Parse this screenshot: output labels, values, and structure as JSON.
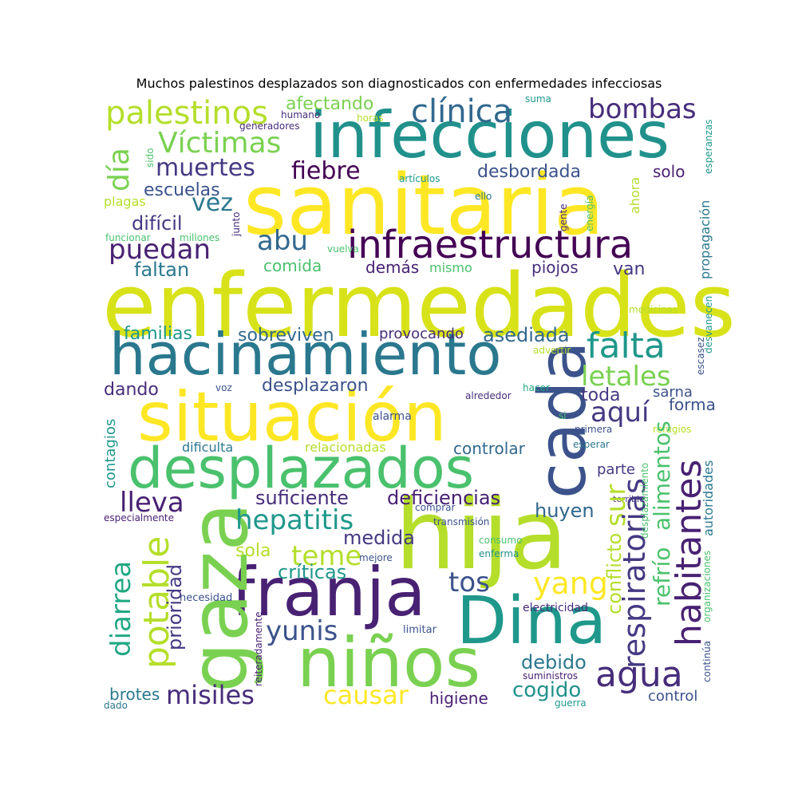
{
  "title": "Muchos palestinos desplazados son diagnosticados con enfermedades infecciosas",
  "words": {
    "enfermedades": "enfermedades",
    "sanitaria": "sanitaria",
    "infecciones": "infecciones",
    "situacion": "situación",
    "hacinamiento": "hacinamiento",
    "hija": "hija",
    "desplazados": "desplazados",
    "ninos": "niños",
    "franja": "franja",
    "gaza": "gaza",
    "dina": "Dina",
    "cada": "cada",
    "infraestructura": "infraestructura",
    "palestinos": "palestinos",
    "clinica": "clínica",
    "bombas": "bombas",
    "victimas": "Víctimas",
    "dia": "día",
    "muertes": "muertes",
    "fiebre": "fiebre",
    "desbordada": "desbordada",
    "afectando": "afectando",
    "escuelas": "escuelas",
    "vez": "vez",
    "solo": "solo",
    "dificil": "difícil",
    "abu": "abu",
    "puedan": "puedan",
    "faltan": "faltan",
    "comida": "comida",
    "demas": "demás",
    "mismo": "mismo",
    "piojos": "piojos",
    "van": "van",
    "falta": "falta",
    "familias": "familias",
    "sobreviven": "sobreviven",
    "provocando": "provocando",
    "asediada": "asediada",
    "letales": "letales",
    "dando": "dando",
    "desplazaron": "desplazaron",
    "toda": "toda",
    "aqui": "aquí",
    "sarna": "sarna",
    "forma": "forma",
    "alarma": "alarma",
    "dificulta": "dificulta",
    "relacionadas": "relacionadas",
    "controlar": "controlar",
    "parte": "parte",
    "lleva": "lleva",
    "suficiente": "suficiente",
    "deficiencias": "deficiencias",
    "huyen": "huyen",
    "hepatitis": "hepatitis",
    "teme": "teme",
    "medida": "medida",
    "sola": "sola",
    "criticas": "críticas",
    "tos": "tos",
    "yang": "yang",
    "agua": "agua",
    "yunis": "yunis",
    "debido": "debido",
    "misiles": "misiles",
    "causar": "causar",
    "higiene": "higiene",
    "cogido": "cogido",
    "brotes": "brotes",
    "dado": "dado",
    "control": "control",
    "guerra": "guerra",
    "suministros": "suministros",
    "electricidad": "electricidad",
    "limitar": "limitar",
    "necesidad": "necesidad",
    "especialmente": "especialmente",
    "comprar": "comprar",
    "transmision": "transmisión",
    "consumo": "consumo",
    "enferma": "enferma",
    "mejore": "mejore",
    "primera": "primera",
    "refugios": "refugios",
    "esperar": "esperar",
    "hacer": "hacer",
    "alrededor": "alrededor",
    "voz": "voz",
    "si": "si",
    "terrible": "terrible",
    "advertir": "advertir",
    "medicinas": "medicinas",
    "vuelva": "vuelva",
    "funcionar": "funcionar",
    "millones": "millones",
    "plagas": "plagas",
    "articulos": "artículos",
    "ello": "ello",
    "gente": "gente",
    "ahora": "ahora",
    "generadores": "generadores",
    "humano": "humano",
    "horas": "horas",
    "suma": "suma",
    "sido": "sido",
    "junto": "junto",
    "energia": "energía",
    "esperanzas": "esperanzas",
    "propagacion": "propagación",
    "desvanecen": "desvanecen",
    "escasez": "escasez",
    "contagios": "contagios",
    "diarrea": "diarrea",
    "potable": "potable",
    "prioridad": "prioridad",
    "conflicto": "conflicto",
    "sur": "sur",
    "respiratorias": "respiratorias",
    "refrio": "refrío",
    "alimentos": "alimentos",
    "habitantes": "habitantes",
    "autoridades": "autoridades",
    "desplazamiento": "desplazamiento",
    "organizaciones": "organizaciones",
    "continua": "continúa",
    "reiteradamente": "reiteradamente"
  }
}
